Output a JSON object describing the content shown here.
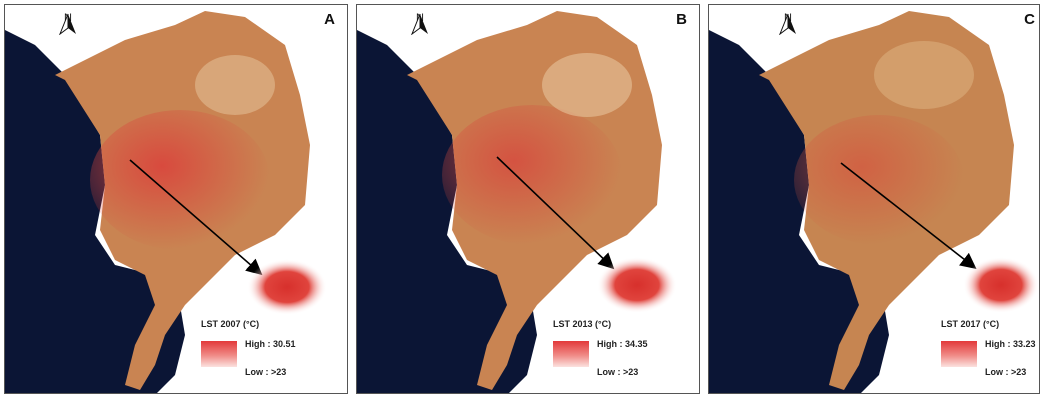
{
  "panels": [
    {
      "letter": "A",
      "north": "N",
      "legend_title": "LST 2007 (°C)",
      "high": "High : 30.51",
      "low": "Low : >23",
      "hot_color": "#d2372f"
    },
    {
      "letter": "B",
      "north": "N",
      "legend_title": "LST 2013 (°C)",
      "high": "High : 34.35",
      "low": "Low : >23",
      "hot_color": "#cf3a31"
    },
    {
      "letter": "C",
      "north": "N",
      "legend_title": "LST 2017 (°C)",
      "high": "High : 33.23",
      "low": "Low : >23",
      "hot_color": "#cc4035"
    }
  ],
  "colors": {
    "sea": "#0b1535",
    "land": "#c98452",
    "urban": "#d9473d",
    "highlight_glow": "#e33b36",
    "legend_high": "#e2393a",
    "legend_low": "#fbe2df"
  }
}
